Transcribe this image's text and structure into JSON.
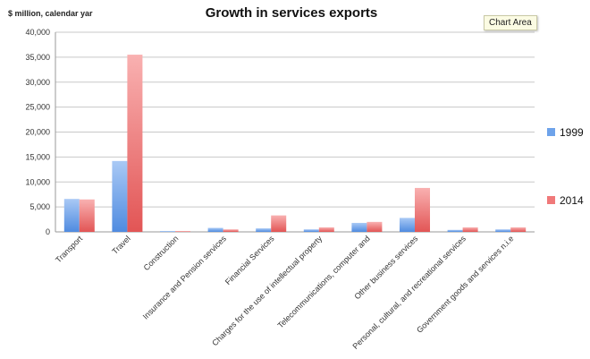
{
  "tooltip": "Chart Area",
  "colors": {
    "series_1999": "#6ea3ea",
    "series_2014": "#f0797a",
    "grid": "#c8c8c8",
    "text": "#333333"
  },
  "chart_data": {
    "type": "bar",
    "title": "Growth in services exports",
    "ylabel": "$ million, calendar yar",
    "xlabel": "",
    "ylim": [
      0,
      40000
    ],
    "yticks": [
      "0",
      "5,000",
      "10,000",
      "15,000",
      "20,000",
      "25,000",
      "30,000",
      "35,000",
      "40,000"
    ],
    "grid": true,
    "legend_position": "right",
    "categories": [
      "Transport",
      "Travel",
      "Construction",
      "Insurance and Pension services",
      "Financial Services",
      "Charges for the use of intellectual property",
      "Telecommunications, computer and",
      "Other business services",
      "Personal, cultural, and recreational services",
      "Government goods and services n.i.e"
    ],
    "series": [
      {
        "name": "1999",
        "values": [
          6600,
          14200,
          100,
          800,
          700,
          500,
          1800,
          2800,
          400,
          500
        ]
      },
      {
        "name": "2014",
        "values": [
          6500,
          35500,
          150,
          500,
          3300,
          900,
          2000,
          8800,
          900,
          900
        ]
      }
    ]
  }
}
